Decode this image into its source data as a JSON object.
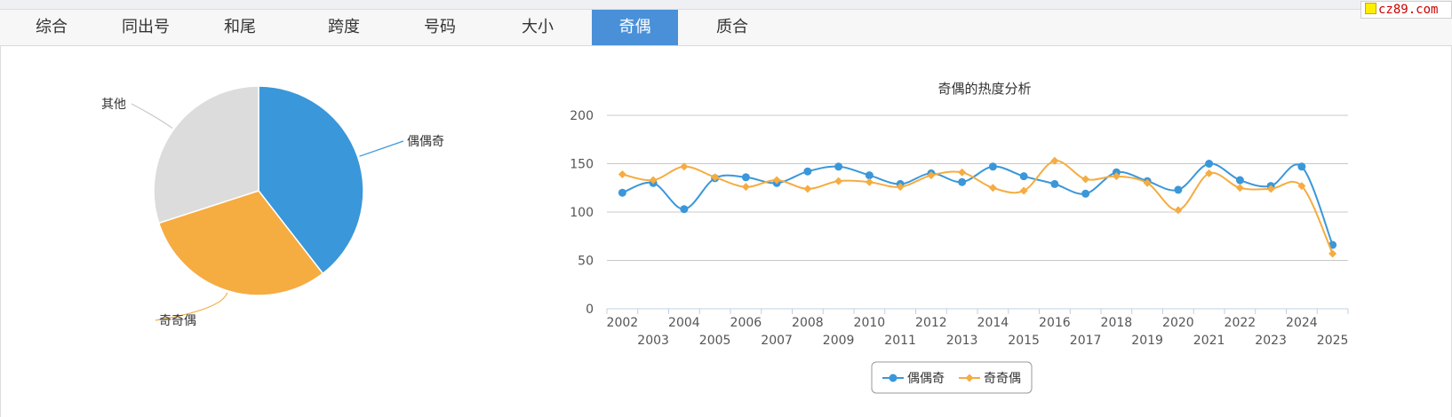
{
  "tabs": [
    {
      "label": "综合",
      "active": false
    },
    {
      "label": "同出号",
      "active": false
    },
    {
      "label": "和尾",
      "active": false
    },
    {
      "label": "跨度",
      "active": false
    },
    {
      "label": "号码",
      "active": false
    },
    {
      "label": "大小",
      "active": false
    },
    {
      "label": "奇偶",
      "active": true
    },
    {
      "label": "质合",
      "active": false
    }
  ],
  "watermark": "cz89.com",
  "colors": {
    "series_blue": "#3a97d9",
    "series_orange": "#f5ac41",
    "other_gray": "#dcdcdc",
    "active_tab": "#4a90d9"
  },
  "chart_data": [
    {
      "type": "pie",
      "labels": [
        "偶偶奇",
        "奇奇偶",
        "其他"
      ],
      "values": [
        39.5,
        30.5,
        30.0
      ],
      "colors": [
        "#3a97d9",
        "#f5ac41",
        "#dcdcdc"
      ]
    },
    {
      "type": "line",
      "title": "奇偶的热度分析",
      "x": [
        "2002",
        "2003",
        "2004",
        "2005",
        "2006",
        "2007",
        "2008",
        "2009",
        "2010",
        "2011",
        "2012",
        "2013",
        "2014",
        "2015",
        "2016",
        "2017",
        "2018",
        "2019",
        "2020",
        "2021",
        "2022",
        "2023",
        "2024",
        "2025"
      ],
      "series": [
        {
          "name": "偶偶奇",
          "color": "#3a97d9",
          "marker": "circle",
          "values": [
            120,
            130,
            103,
            135,
            136,
            130,
            142,
            147,
            138,
            129,
            140,
            131,
            147,
            137,
            129,
            119,
            141,
            132,
            123,
            150,
            133,
            127,
            147,
            66
          ]
        },
        {
          "name": "奇奇偶",
          "color": "#f5ac41",
          "marker": "diamond",
          "values": [
            139,
            133,
            147,
            136,
            126,
            133,
            124,
            132,
            131,
            126,
            138,
            141,
            125,
            122,
            153,
            134,
            137,
            130,
            102,
            140,
            125,
            124,
            127,
            57
          ]
        }
      ],
      "ylim": [
        0,
        200
      ],
      "yticks": [
        0,
        50,
        100,
        150,
        200
      ],
      "grid": true,
      "legend": "bottom-center"
    }
  ]
}
